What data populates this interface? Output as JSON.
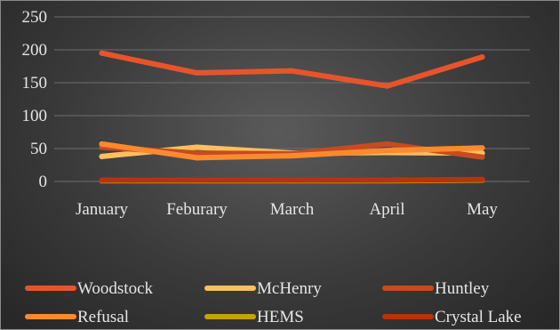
{
  "chart_data": {
    "type": "line",
    "categories": [
      "January",
      "Feburary",
      "March",
      "April",
      "May"
    ],
    "ylim": [
      0,
      250
    ],
    "yticks": [
      0,
      50,
      100,
      150,
      200,
      250
    ],
    "grid": true,
    "legend_position": "bottom",
    "series": [
      {
        "name": "Woodstock",
        "color": "#e8542a",
        "values": [
          195,
          165,
          168,
          145,
          189
        ]
      },
      {
        "name": "McHenry",
        "color": "#ffbf5e",
        "values": [
          38,
          52,
          43,
          44,
          43
        ]
      },
      {
        "name": "Huntley",
        "color": "#c64b20",
        "values": [
          52,
          43,
          42,
          57,
          37
        ]
      },
      {
        "name": "Refusal",
        "color": "#ff8a2e",
        "values": [
          57,
          36,
          39,
          47,
          51
        ]
      },
      {
        "name": "HEMS",
        "color": "#c7a200",
        "values": [
          1,
          1,
          1,
          1,
          2
        ]
      },
      {
        "name": "Crystal Lake",
        "color": "#b8320e",
        "values": [
          2,
          2,
          2,
          2,
          3
        ]
      }
    ]
  }
}
